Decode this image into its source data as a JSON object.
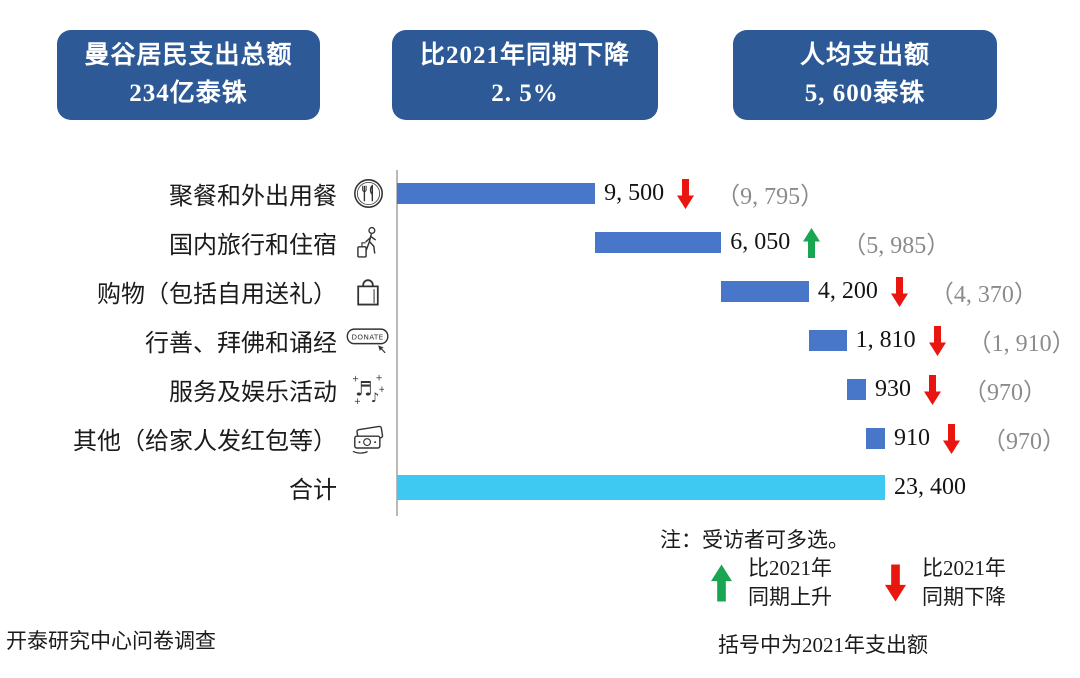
{
  "header": {
    "boxes": [
      {
        "line1": "曼谷居民支出总额",
        "line2": "234亿泰铢"
      },
      {
        "line1": "比2021年同期下降",
        "line2": "2. 5%"
      },
      {
        "line1": "人均支出额",
        "line2": "5, 600泰铢"
      }
    ],
    "bg_color": "#2d5a96",
    "text_color": "#ffffff"
  },
  "chart_data": {
    "type": "bar",
    "variant": "horizontal-waterfall",
    "xlim": [
      0,
      23400
    ],
    "grid": false,
    "categories": [
      "聚餐和外出用餐",
      "国内旅行和住宿",
      "购物（包括自用送礼）",
      "行善、拜佛和诵经",
      "服务及娱乐活动",
      "其他（给家人发红包等）",
      "合计"
    ],
    "values": [
      9500,
      6050,
      4200,
      1810,
      930,
      910,
      23400
    ],
    "items": [
      {
        "label": "聚餐和外出用餐",
        "icon": "dining-icon",
        "value": 9500,
        "display": "9, 500",
        "trend": "down",
        "prev_value": 9795,
        "prev_display": "（9, 795）"
      },
      {
        "label": "国内旅行和住宿",
        "icon": "traveler-icon",
        "value": 6050,
        "display": "6, 050",
        "trend": "up",
        "prev_value": 5985,
        "prev_display": "（5, 985）"
      },
      {
        "label": "购物（包括自用送礼）",
        "icon": "shopping-bag-icon",
        "value": 4200,
        "display": "4, 200",
        "trend": "down",
        "prev_value": 4370,
        "prev_display": "（4, 370）"
      },
      {
        "label": "行善、拜佛和诵经",
        "icon": "donate-icon",
        "value": 1810,
        "display": "1, 810",
        "trend": "down",
        "prev_value": 1910,
        "prev_display": "（1, 910）"
      },
      {
        "label": "服务及娱乐活动",
        "icon": "music-notes-icon",
        "value": 930,
        "display": "930",
        "trend": "down",
        "prev_value": 970,
        "prev_display": "（970）"
      },
      {
        "label": "其他（给家人发红包等）",
        "icon": "money-icon",
        "value": 910,
        "display": "910",
        "trend": "down",
        "prev_value": 970,
        "prev_display": "（970）"
      }
    ],
    "total": {
      "label": "合计",
      "value": 23400,
      "display": "23, 400"
    },
    "colors": {
      "bar": "#4876c8",
      "total_bar": "#3ec9f2",
      "up_arrow": "#18a653",
      "down_arrow": "#e9150f",
      "prev_text": "#8b8b8b",
      "axis": "#b9b9b9"
    }
  },
  "notes": {
    "multi_select": "注：受访者可多选。",
    "legend_up": {
      "line1": "比2021年",
      "line2": "同期上升"
    },
    "legend_down": {
      "line1": "比2021年",
      "line2": "同期下降"
    }
  },
  "footer": {
    "source": "开泰研究中心问卷调查",
    "paren_note": "括号中为2021年支出额"
  }
}
